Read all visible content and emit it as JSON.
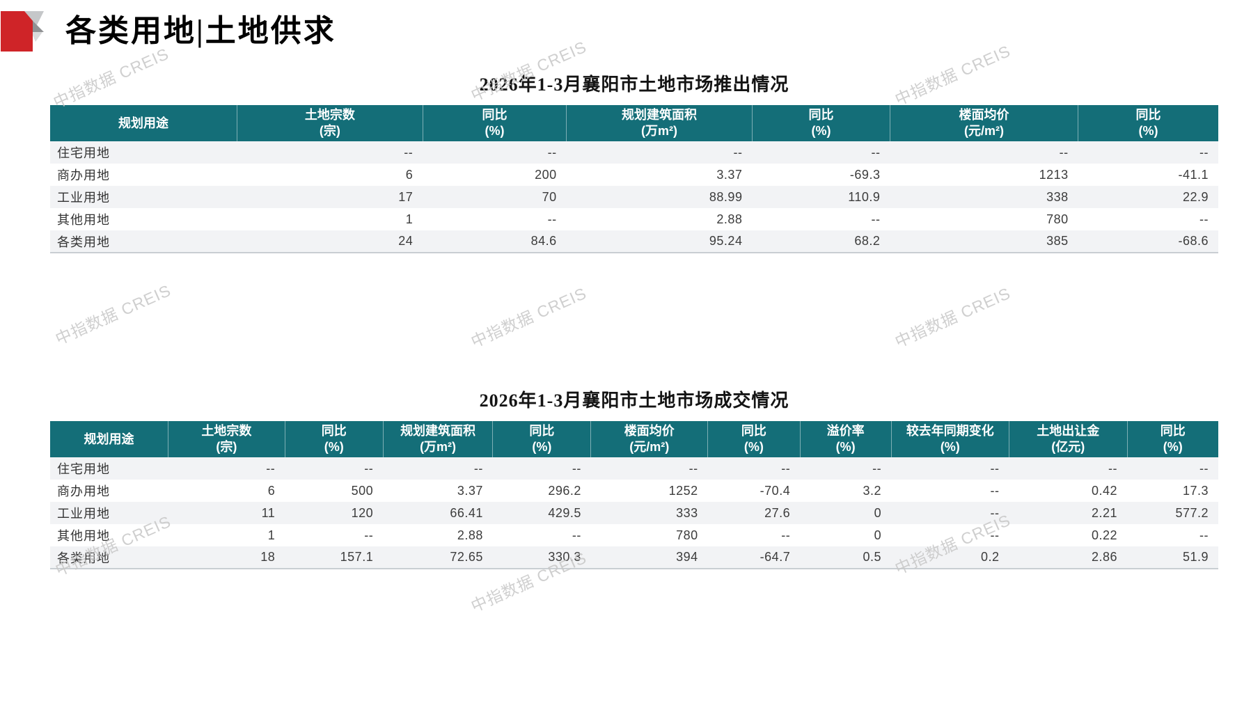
{
  "page": {
    "title": "各类用地|土地供求",
    "watermark": "中指数据 CREIS"
  },
  "colors": {
    "table_header_bg": "#146e78",
    "row_alt_bg": "#f2f3f5",
    "logo_red": "#cf2428",
    "logo_gray_light": "#c5c7c9",
    "logo_gray_dark": "#8f9193",
    "watermark_gray": "#c7c7c7"
  },
  "supply_table": {
    "title": "2026年1-3月襄阳市土地市场推出情况",
    "columns": [
      {
        "label": "规划用途",
        "unit": ""
      },
      {
        "label": "土地宗数",
        "unit": "(宗)"
      },
      {
        "label": "同比",
        "unit": "(%)"
      },
      {
        "label": "规划建筑面积",
        "unit": "(万m²)"
      },
      {
        "label": "同比",
        "unit": "(%)"
      },
      {
        "label": "楼面均价",
        "unit": "(元/m²)"
      },
      {
        "label": "同比",
        "unit": "(%)"
      }
    ],
    "rows": [
      [
        "住宅用地",
        "--",
        "--",
        "--",
        "--",
        "--",
        "--"
      ],
      [
        "商办用地",
        "6",
        "200",
        "3.37",
        "-69.3",
        "1213",
        "-41.1"
      ],
      [
        "工业用地",
        "17",
        "70",
        "88.99",
        "110.9",
        "338",
        "22.9"
      ],
      [
        "其他用地",
        "1",
        "--",
        "2.88",
        "--",
        "780",
        "--"
      ],
      [
        "各类用地",
        "24",
        "84.6",
        "95.24",
        "68.2",
        "385",
        "-68.6"
      ]
    ]
  },
  "deal_table": {
    "title": "2026年1-3月襄阳市土地市场成交情况",
    "columns": [
      {
        "label": "规划用途",
        "unit": ""
      },
      {
        "label": "土地宗数",
        "unit": "(宗)"
      },
      {
        "label": "同比",
        "unit": "(%)"
      },
      {
        "label": "规划建筑面积",
        "unit": "(万m²)"
      },
      {
        "label": "同比",
        "unit": "(%)"
      },
      {
        "label": "楼面均价",
        "unit": "(元/m²)"
      },
      {
        "label": "同比",
        "unit": "(%)"
      },
      {
        "label": "溢价率",
        "unit": "(%)"
      },
      {
        "label": "较去年同期变化",
        "unit": "(%)"
      },
      {
        "label": "土地出让金",
        "unit": "(亿元)"
      },
      {
        "label": "同比",
        "unit": "(%)"
      }
    ],
    "rows": [
      [
        "住宅用地",
        "--",
        "--",
        "--",
        "--",
        "--",
        "--",
        "--",
        "--",
        "--",
        "--"
      ],
      [
        "商办用地",
        "6",
        "500",
        "3.37",
        "296.2",
        "1252",
        "-70.4",
        "3.2",
        "--",
        "0.42",
        "17.3"
      ],
      [
        "工业用地",
        "11",
        "120",
        "66.41",
        "429.5",
        "333",
        "27.6",
        "0",
        "--",
        "2.21",
        "577.2"
      ],
      [
        "其他用地",
        "1",
        "--",
        "2.88",
        "--",
        "780",
        "--",
        "0",
        "--",
        "0.22",
        "--"
      ],
      [
        "各类用地",
        "18",
        "157.1",
        "72.65",
        "330.3",
        "394",
        "-64.7",
        "0.5",
        "0.2",
        "2.86",
        "51.9"
      ]
    ]
  }
}
